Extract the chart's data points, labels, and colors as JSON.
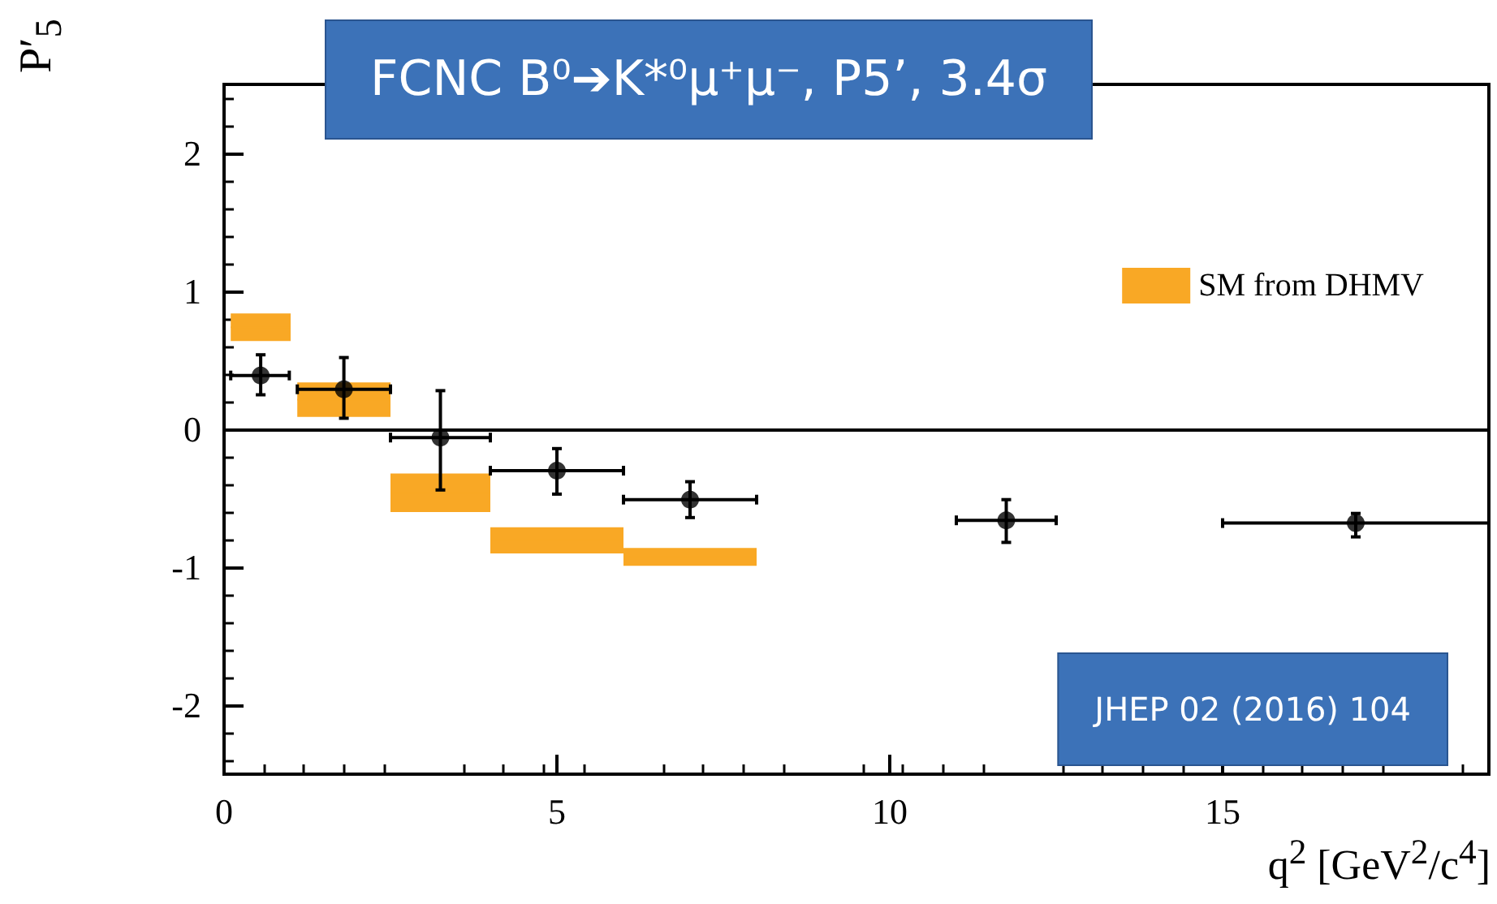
{
  "chart_data": {
    "type": "scatter",
    "title": "FCNC B⁰➔K*⁰μ⁺μ⁻, P5’, 3.4σ",
    "xlabel": "q$^{2}$ [GeV$^{2}$/c$^{4}$]",
    "ylabel": "P′$_{5}$",
    "annotations": [
      "JHEP 02 (2016) 104"
    ],
    "xlim": [
      0,
      19
    ],
    "xticks": [
      0,
      5,
      10,
      15
    ],
    "ylim": [
      -2.5,
      2.5
    ],
    "yticks": [
      -2,
      -1,
      0,
      1,
      2
    ],
    "grid": false,
    "legend": "top right",
    "marker": "circle",
    "ref_lines": [
      {
        "axis": "y",
        "value": 0,
        "color": "#000000"
      }
    ],
    "series": [
      {
        "name": "SM from DHMV",
        "type": "bar",
        "color": "#f9a825",
        "x": [
          0.55,
          1.8,
          3.25,
          5,
          7
        ],
        "xerrors": [
          [
            0.1,
            1.0
          ],
          [
            1.1,
            2.5
          ],
          [
            2.5,
            4
          ],
          [
            4,
            6
          ],
          [
            6,
            8
          ]
        ],
        "base": [
          0.64,
          0.09,
          -0.6,
          -0.9,
          -0.99
        ],
        "values": [
          0.2,
          0.25,
          0.28,
          0.19,
          0.13
        ]
      },
      {
        "color": "#000000",
        "x": [
          0.55,
          1.8,
          3.25,
          5,
          7,
          11.75,
          17
        ],
        "values": [
          0.39,
          0.29,
          -0.06,
          -0.3,
          -0.51,
          -0.66,
          -0.68
        ],
        "errors": [
          [
            0.25,
            0.54
          ],
          [
            0.08,
            0.52
          ],
          [
            -0.44,
            0.28
          ],
          [
            -0.47,
            -0.14
          ],
          [
            -0.64,
            -0.38
          ],
          [
            -0.82,
            -0.51
          ],
          [
            -0.78,
            -0.61
          ]
        ],
        "xerrors": [
          [
            0.1,
            0.98
          ],
          [
            1.1,
            2.5
          ],
          [
            2.5,
            4
          ],
          [
            4,
            6
          ],
          [
            6,
            8
          ],
          [
            11,
            12.5
          ],
          [
            15,
            19
          ]
        ]
      }
    ]
  }
}
